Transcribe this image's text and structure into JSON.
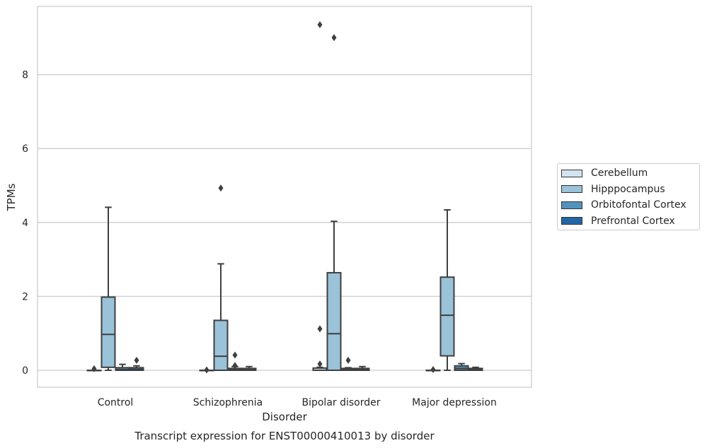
{
  "chart_data": {
    "type": "box",
    "title": "",
    "caption": "Transcript expression for ENST00000410013 by disorder",
    "xlabel": "Disorder",
    "ylabel": "TPMs",
    "ylim": [
      -0.45,
      9.8
    ],
    "yticks": [
      0,
      2,
      4,
      6,
      8
    ],
    "grid": "horizontal",
    "legend_position": "right",
    "categories": [
      "Control",
      "Schizophrenia",
      "Bipolar disorder",
      "Major depression"
    ],
    "series": [
      {
        "name": "Cerebellum",
        "color": "#d4e3ef",
        "boxes": [
          {
            "min": 0.0,
            "q1": 0.0,
            "median": 0.0,
            "q3": 0.0,
            "max": 0.0,
            "outliers": [
              0.04
            ]
          },
          {
            "min": 0.0,
            "q1": 0.0,
            "median": 0.0,
            "q3": 0.0,
            "max": 0.0,
            "outliers": [
              0.01
            ]
          },
          {
            "min": 0.0,
            "q1": 0.0,
            "median": 0.0,
            "q3": 0.06,
            "max": 0.08,
            "outliers": [
              0.17,
              1.12,
              9.35
            ]
          },
          {
            "min": 0.0,
            "q1": 0.0,
            "median": 0.0,
            "q3": 0.0,
            "max": 0.0,
            "outliers": [
              0.02
            ]
          }
        ]
      },
      {
        "name": "Hipppocampus",
        "color": "#9ac2d9",
        "boxes": [
          {
            "min": 0.0,
            "q1": 0.08,
            "median": 0.97,
            "q3": 1.98,
            "max": 4.41,
            "outliers": []
          },
          {
            "min": 0.0,
            "q1": 0.0,
            "median": 0.38,
            "q3": 1.35,
            "max": 2.88,
            "outliers": [
              4.93
            ]
          },
          {
            "min": 0.0,
            "q1": 0.0,
            "median": 0.99,
            "q3": 2.64,
            "max": 4.03,
            "outliers": [
              9.0
            ]
          },
          {
            "min": 0.0,
            "q1": 0.39,
            "median": 1.49,
            "q3": 2.52,
            "max": 4.34,
            "outliers": []
          }
        ]
      },
      {
        "name": "Orbitofontal Cortex",
        "color": "#5292bf",
        "boxes": [
          {
            "min": 0.0,
            "q1": 0.0,
            "median": 0.02,
            "q3": 0.07,
            "max": 0.16,
            "outliers": []
          },
          {
            "min": 0.0,
            "q1": 0.0,
            "median": 0.02,
            "q3": 0.05,
            "max": 0.1,
            "outliers": [
              0.13,
              0.41
            ]
          },
          {
            "min": 0.0,
            "q1": 0.0,
            "median": 0.02,
            "q3": 0.05,
            "max": 0.07,
            "outliers": [
              0.27
            ]
          },
          {
            "min": 0.0,
            "q1": 0.0,
            "median": 0.05,
            "q3": 0.12,
            "max": 0.18,
            "outliers": []
          }
        ]
      },
      {
        "name": "Prefrontal Cortex",
        "color": "#2266a6",
        "boxes": [
          {
            "min": 0.0,
            "q1": 0.0,
            "median": 0.02,
            "q3": 0.07,
            "max": 0.12,
            "outliers": [
              0.27
            ]
          },
          {
            "min": 0.0,
            "q1": 0.0,
            "median": 0.01,
            "q3": 0.05,
            "max": 0.1,
            "outliers": []
          },
          {
            "min": 0.0,
            "q1": 0.0,
            "median": 0.02,
            "q3": 0.05,
            "max": 0.1,
            "outliers": []
          },
          {
            "min": 0.0,
            "q1": 0.0,
            "median": 0.02,
            "q3": 0.05,
            "max": 0.08,
            "outliers": []
          }
        ]
      }
    ]
  }
}
